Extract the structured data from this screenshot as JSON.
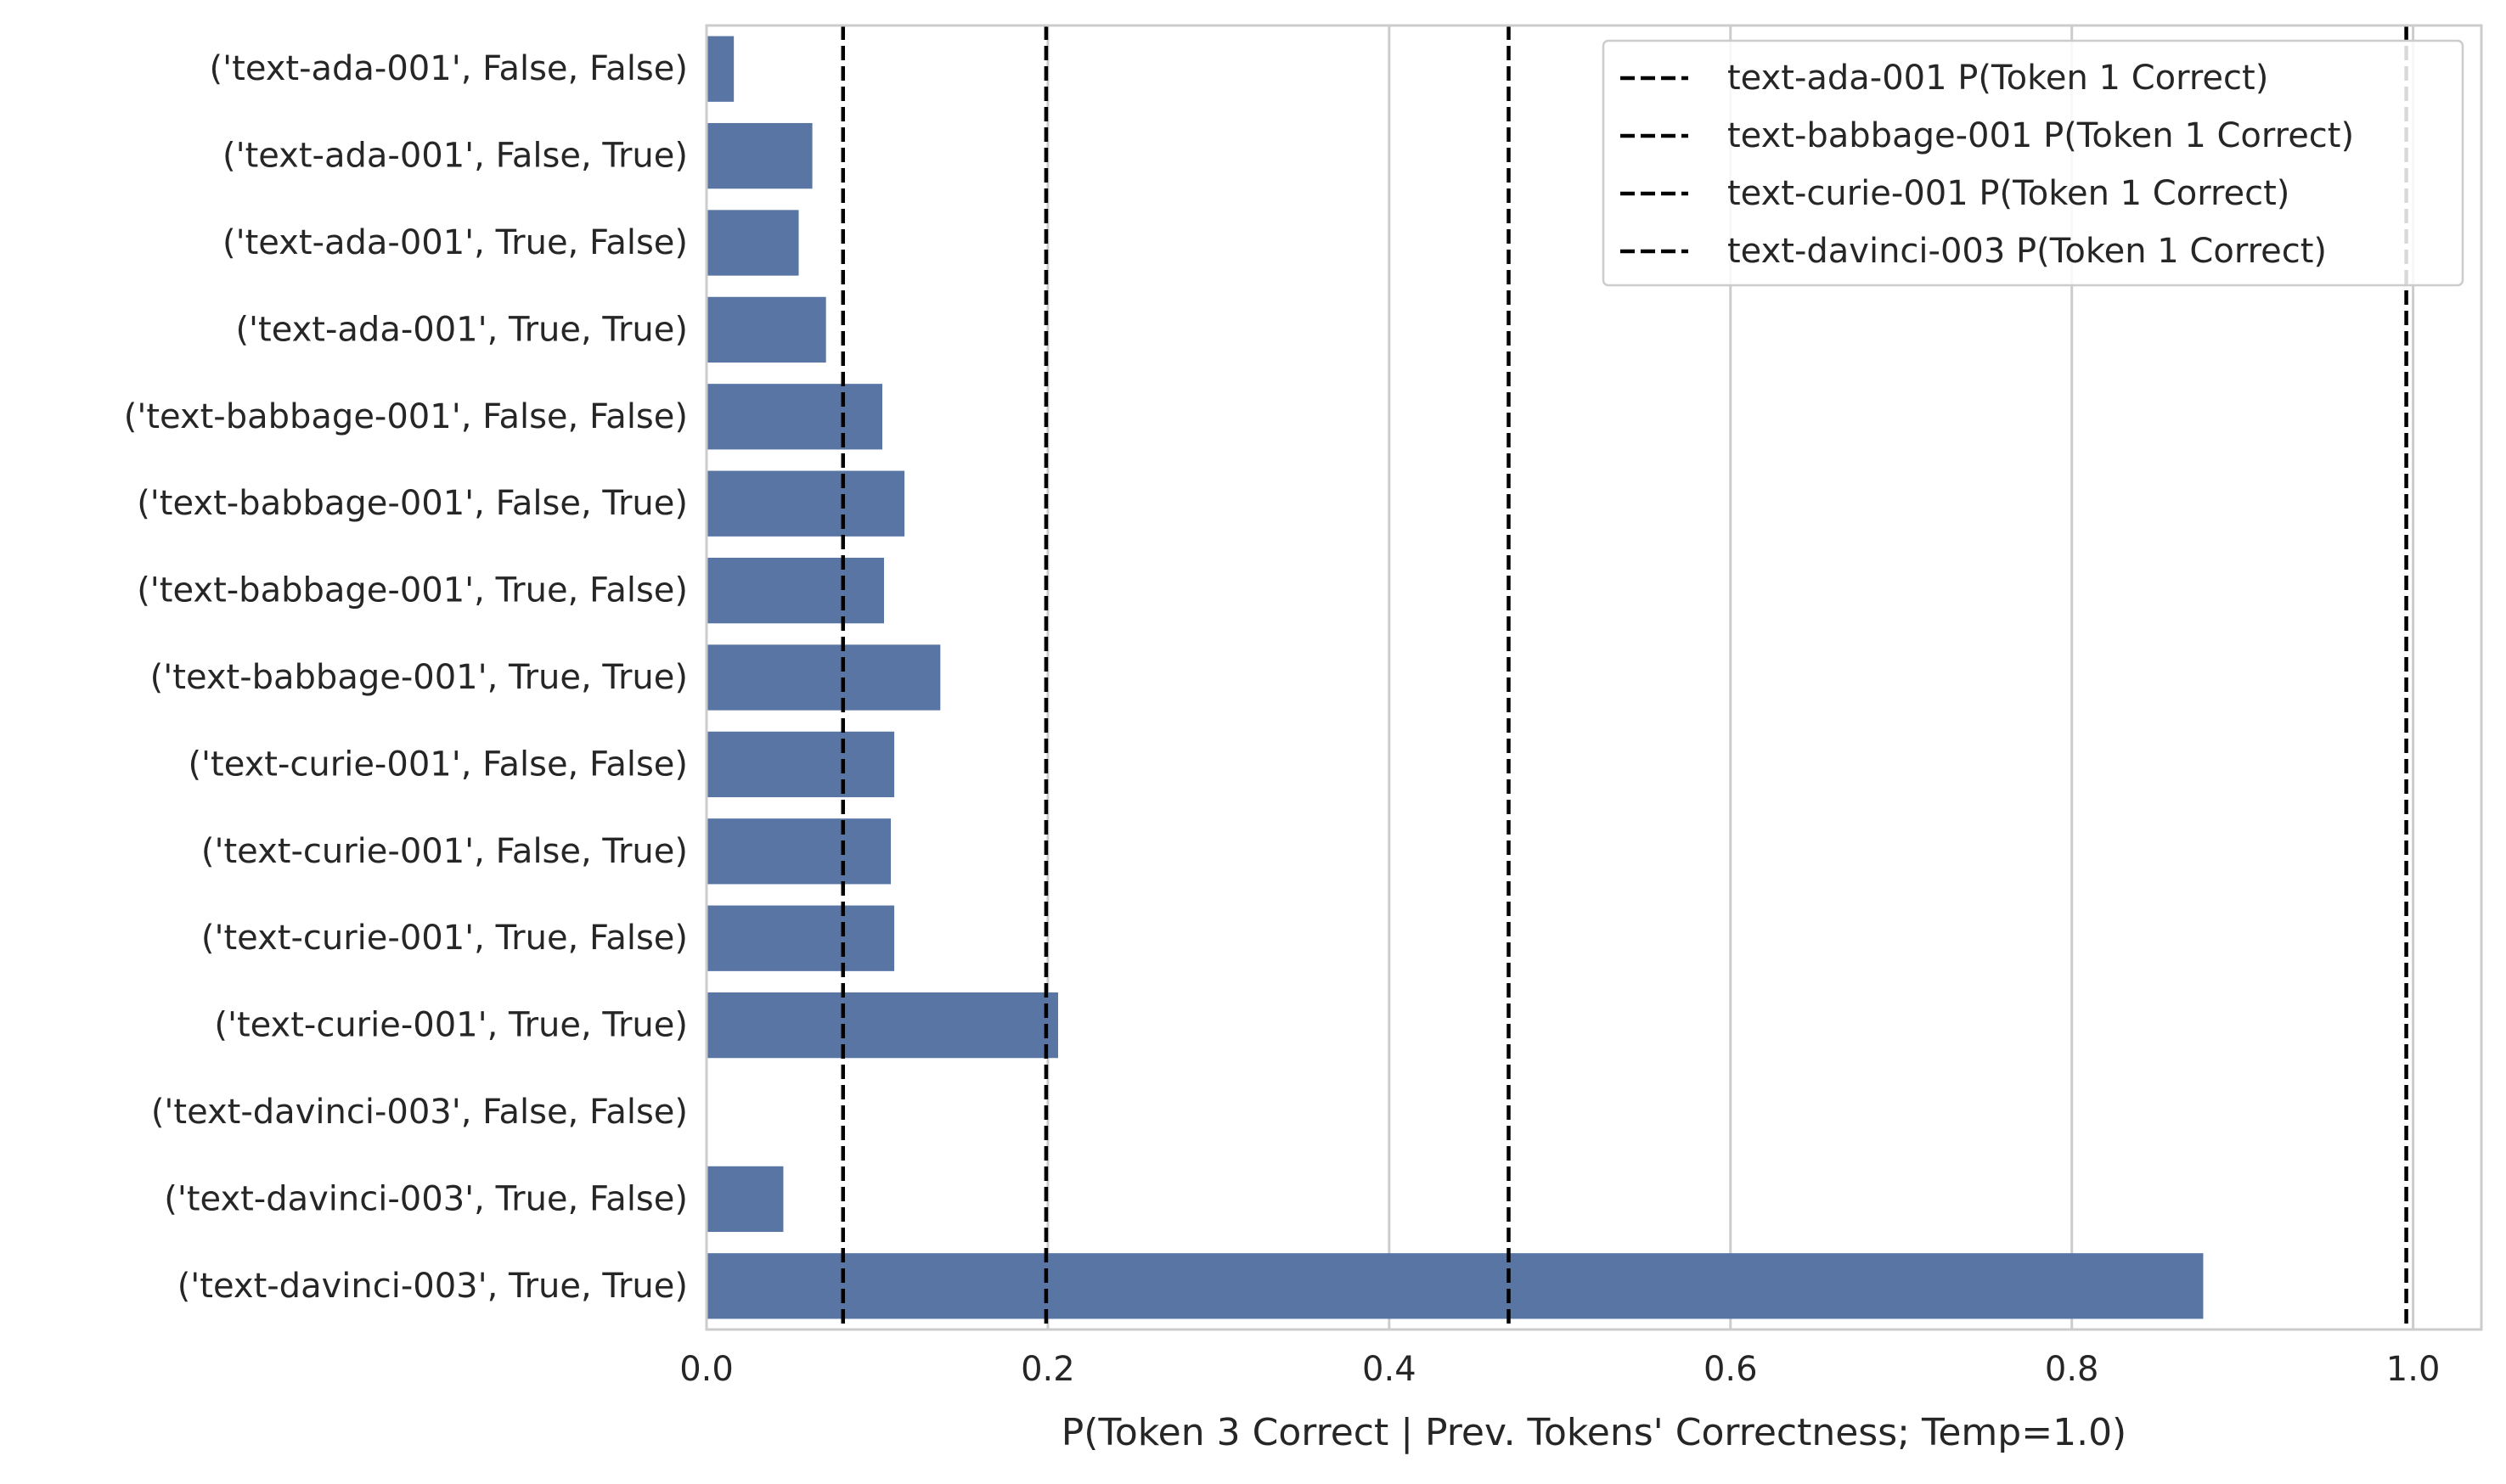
{
  "chart_data": {
    "type": "bar",
    "orientation": "horizontal",
    "categories": [
      "('text-ada-001', False, False)",
      "('text-ada-001', False, True)",
      "('text-ada-001', True, False)",
      "('text-ada-001', True, True)",
      "('text-babbage-001', False, False)",
      "('text-babbage-001', False, True)",
      "('text-babbage-001', True, False)",
      "('text-babbage-001', True, True)",
      "('text-curie-001', False, False)",
      "('text-curie-001', False, True)",
      "('text-curie-001', True, False)",
      "('text-curie-001', True, True)",
      "('text-davinci-003', False, False)",
      "('text-davinci-003', True, False)",
      "('text-davinci-003', True, True)"
    ],
    "values": [
      0.016,
      0.062,
      0.054,
      0.07,
      0.103,
      0.116,
      0.104,
      0.137,
      0.11,
      0.108,
      0.11,
      0.206,
      0.0,
      0.045,
      0.877
    ],
    "bar_color": "#5975a4",
    "reference_lines": [
      {
        "label": "text-ada-001 P(Token 1 Correct)",
        "value": 0.08
      },
      {
        "label": "text-babbage-001 P(Token 1 Correct)",
        "value": 0.199
      },
      {
        "label": "text-curie-001 P(Token 1 Correct)",
        "value": 0.47
      },
      {
        "label": "text-davinci-003 P(Token 1 Correct)",
        "value": 0.996
      }
    ],
    "title": "",
    "xlabel": "P(Token 3 Correct | Prev. Tokens' Correctness; Temp=1.0)",
    "ylabel": "",
    "xlim": [
      0.0,
      1.04
    ],
    "xticks": [
      0.0,
      0.2,
      0.4,
      0.6,
      0.8,
      1.0
    ],
    "xtick_labels": [
      "0.0",
      "0.2",
      "0.4",
      "0.6",
      "0.8",
      "1.0"
    ],
    "grid": "x",
    "legend_position": "top-right"
  }
}
